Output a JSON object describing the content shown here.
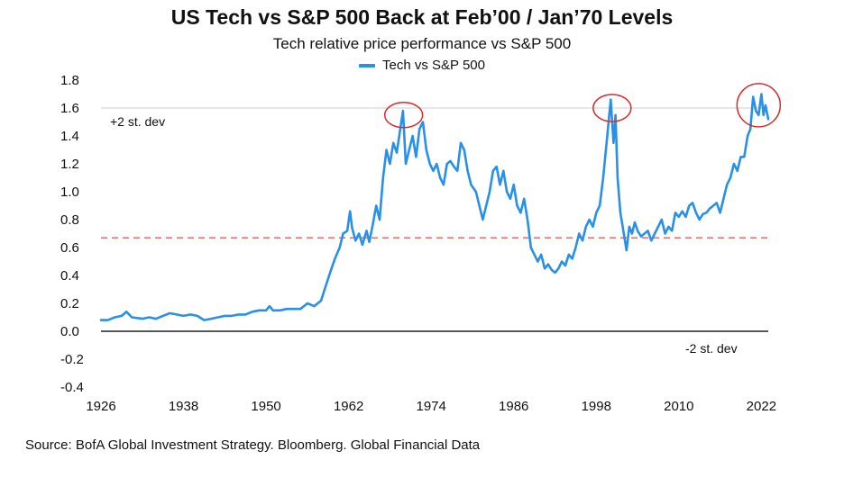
{
  "colors": {
    "series": "#2990ea",
    "gridline": "#d8d8d8",
    "zero_line": "#222222",
    "stdev_line": "#d9534f",
    "highlight": "#d62c2c"
  },
  "chart_data": {
    "type": "line",
    "title": "US Tech vs S&P 500 Back at Feb’00 / Jan’70 Levels",
    "subtitle": "Tech relative price performance vs S&P 500",
    "xlabel": "",
    "ylabel": "",
    "xlim": [
      1926,
      2023
    ],
    "ylim": [
      -0.4,
      1.8
    ],
    "x_ticks": [
      "1926",
      "1938",
      "1950",
      "1962",
      "1974",
      "1986",
      "1998",
      "2010",
      "2022"
    ],
    "y_ticks": [
      "1.8",
      "1.6",
      "1.4",
      "1.2",
      "1.0",
      "0.8",
      "0.6",
      "0.4",
      "0.2",
      "0.0",
      "-0.2",
      "-0.4"
    ],
    "grid": "horizontal",
    "legend": "top-center",
    "series": [
      {
        "name": "Tech vs S&P 500",
        "points": [
          [
            1926.0,
            0.08
          ],
          [
            1927.0,
            0.08
          ],
          [
            1928.0,
            0.1
          ],
          [
            1929.0,
            0.11
          ],
          [
            1929.7,
            0.14
          ],
          [
            1930.5,
            0.1
          ],
          [
            1932.0,
            0.09
          ],
          [
            1933.0,
            0.1
          ],
          [
            1934.0,
            0.09
          ],
          [
            1935.0,
            0.11
          ],
          [
            1936.0,
            0.13
          ],
          [
            1937.0,
            0.12
          ],
          [
            1938.0,
            0.11
          ],
          [
            1939.0,
            0.12
          ],
          [
            1940.0,
            0.11
          ],
          [
            1941.0,
            0.08
          ],
          [
            1942.0,
            0.09
          ],
          [
            1943.0,
            0.1
          ],
          [
            1944.0,
            0.11
          ],
          [
            1945.0,
            0.11
          ],
          [
            1946.0,
            0.12
          ],
          [
            1947.0,
            0.12
          ],
          [
            1948.0,
            0.14
          ],
          [
            1949.0,
            0.15
          ],
          [
            1950.0,
            0.15
          ],
          [
            1950.5,
            0.18
          ],
          [
            1951.0,
            0.15
          ],
          [
            1952.0,
            0.15
          ],
          [
            1953.0,
            0.16
          ],
          [
            1954.0,
            0.16
          ],
          [
            1955.0,
            0.16
          ],
          [
            1956.0,
            0.2
          ],
          [
            1957.0,
            0.18
          ],
          [
            1958.0,
            0.22
          ],
          [
            1958.7,
            0.33
          ],
          [
            1959.5,
            0.45
          ],
          [
            1960.0,
            0.52
          ],
          [
            1960.7,
            0.6
          ],
          [
            1961.2,
            0.7
          ],
          [
            1961.8,
            0.72
          ],
          [
            1962.2,
            0.86
          ],
          [
            1962.5,
            0.74
          ],
          [
            1963.0,
            0.65
          ],
          [
            1963.5,
            0.7
          ],
          [
            1964.0,
            0.62
          ],
          [
            1964.6,
            0.72
          ],
          [
            1965.0,
            0.64
          ],
          [
            1965.5,
            0.76
          ],
          [
            1966.0,
            0.9
          ],
          [
            1966.5,
            0.8
          ],
          [
            1967.0,
            1.1
          ],
          [
            1967.5,
            1.3
          ],
          [
            1968.0,
            1.2
          ],
          [
            1968.5,
            1.35
          ],
          [
            1969.0,
            1.28
          ],
          [
            1969.5,
            1.45
          ],
          [
            1969.9,
            1.58
          ],
          [
            1970.3,
            1.2
          ],
          [
            1970.8,
            1.3
          ],
          [
            1971.3,
            1.4
          ],
          [
            1971.8,
            1.25
          ],
          [
            1972.3,
            1.45
          ],
          [
            1972.8,
            1.5
          ],
          [
            1973.3,
            1.3
          ],
          [
            1973.8,
            1.2
          ],
          [
            1974.3,
            1.15
          ],
          [
            1974.8,
            1.2
          ],
          [
            1975.3,
            1.1
          ],
          [
            1975.8,
            1.05
          ],
          [
            1976.3,
            1.2
          ],
          [
            1976.8,
            1.22
          ],
          [
            1977.3,
            1.18
          ],
          [
            1977.8,
            1.15
          ],
          [
            1978.3,
            1.35
          ],
          [
            1978.8,
            1.3
          ],
          [
            1979.3,
            1.15
          ],
          [
            1979.8,
            1.05
          ],
          [
            1980.5,
            1.0
          ],
          [
            1981.0,
            0.9
          ],
          [
            1981.5,
            0.8
          ],
          [
            1982.0,
            0.9
          ],
          [
            1982.5,
            1.0
          ],
          [
            1983.0,
            1.15
          ],
          [
            1983.5,
            1.18
          ],
          [
            1984.0,
            1.05
          ],
          [
            1984.5,
            1.15
          ],
          [
            1985.0,
            1.0
          ],
          [
            1985.5,
            0.95
          ],
          [
            1986.0,
            1.05
          ],
          [
            1986.5,
            0.9
          ],
          [
            1987.0,
            0.85
          ],
          [
            1987.5,
            0.95
          ],
          [
            1988.0,
            0.8
          ],
          [
            1988.5,
            0.6
          ],
          [
            1989.0,
            0.55
          ],
          [
            1989.5,
            0.5
          ],
          [
            1990.0,
            0.55
          ],
          [
            1990.5,
            0.45
          ],
          [
            1991.0,
            0.48
          ],
          [
            1991.5,
            0.44
          ],
          [
            1992.0,
            0.42
          ],
          [
            1992.5,
            0.45
          ],
          [
            1993.0,
            0.5
          ],
          [
            1993.5,
            0.47
          ],
          [
            1994.0,
            0.55
          ],
          [
            1994.5,
            0.52
          ],
          [
            1995.0,
            0.6
          ],
          [
            1995.5,
            0.7
          ],
          [
            1996.0,
            0.65
          ],
          [
            1996.5,
            0.75
          ],
          [
            1997.0,
            0.8
          ],
          [
            1997.5,
            0.75
          ],
          [
            1998.0,
            0.85
          ],
          [
            1998.5,
            0.9
          ],
          [
            1999.0,
            1.1
          ],
          [
            1999.5,
            1.35
          ],
          [
            2000.1,
            1.66
          ],
          [
            2000.5,
            1.35
          ],
          [
            2000.8,
            1.55
          ],
          [
            2001.1,
            1.1
          ],
          [
            2001.5,
            0.85
          ],
          [
            2002.0,
            0.7
          ],
          [
            2002.4,
            0.58
          ],
          [
            2002.8,
            0.75
          ],
          [
            2003.2,
            0.7
          ],
          [
            2003.6,
            0.78
          ],
          [
            2004.0,
            0.72
          ],
          [
            2004.5,
            0.68
          ],
          [
            2005.0,
            0.7
          ],
          [
            2005.5,
            0.72
          ],
          [
            2006.0,
            0.65
          ],
          [
            2006.5,
            0.7
          ],
          [
            2007.0,
            0.75
          ],
          [
            2007.5,
            0.8
          ],
          [
            2008.0,
            0.7
          ],
          [
            2008.5,
            0.75
          ],
          [
            2009.0,
            0.72
          ],
          [
            2009.5,
            0.85
          ],
          [
            2010.0,
            0.82
          ],
          [
            2010.5,
            0.86
          ],
          [
            2011.0,
            0.82
          ],
          [
            2011.5,
            0.9
          ],
          [
            2012.0,
            0.92
          ],
          [
            2012.5,
            0.85
          ],
          [
            2013.0,
            0.8
          ],
          [
            2013.5,
            0.84
          ],
          [
            2014.0,
            0.85
          ],
          [
            2014.5,
            0.88
          ],
          [
            2015.0,
            0.9
          ],
          [
            2015.5,
            0.92
          ],
          [
            2016.0,
            0.85
          ],
          [
            2016.5,
            0.95
          ],
          [
            2017.0,
            1.05
          ],
          [
            2017.5,
            1.1
          ],
          [
            2018.0,
            1.2
          ],
          [
            2018.5,
            1.15
          ],
          [
            2019.0,
            1.25
          ],
          [
            2019.5,
            1.25
          ],
          [
            2020.0,
            1.4
          ],
          [
            2020.4,
            1.45
          ],
          [
            2020.8,
            1.68
          ],
          [
            2021.2,
            1.58
          ],
          [
            2021.6,
            1.55
          ],
          [
            2022.0,
            1.7
          ],
          [
            2022.3,
            1.55
          ],
          [
            2022.6,
            1.62
          ],
          [
            2023.0,
            1.52
          ]
        ]
      }
    ],
    "reference_lines": [
      {
        "label": "+2 st. dev",
        "value": 1.6,
        "style": "solid-gray"
      },
      {
        "label": "",
        "value": 0.67,
        "style": "dashed-red"
      },
      {
        "label": "-2 st. dev",
        "value": 0.0,
        "style": "solid-dark"
      }
    ],
    "highlights": [
      {
        "x": 1970.0,
        "y": 1.55
      },
      {
        "x": 2000.3,
        "y": 1.6
      },
      {
        "x": 2021.6,
        "y": 1.62
      }
    ]
  },
  "source": "Source: BofA Global Investment Strategy. Bloomberg. Global Financial Data"
}
